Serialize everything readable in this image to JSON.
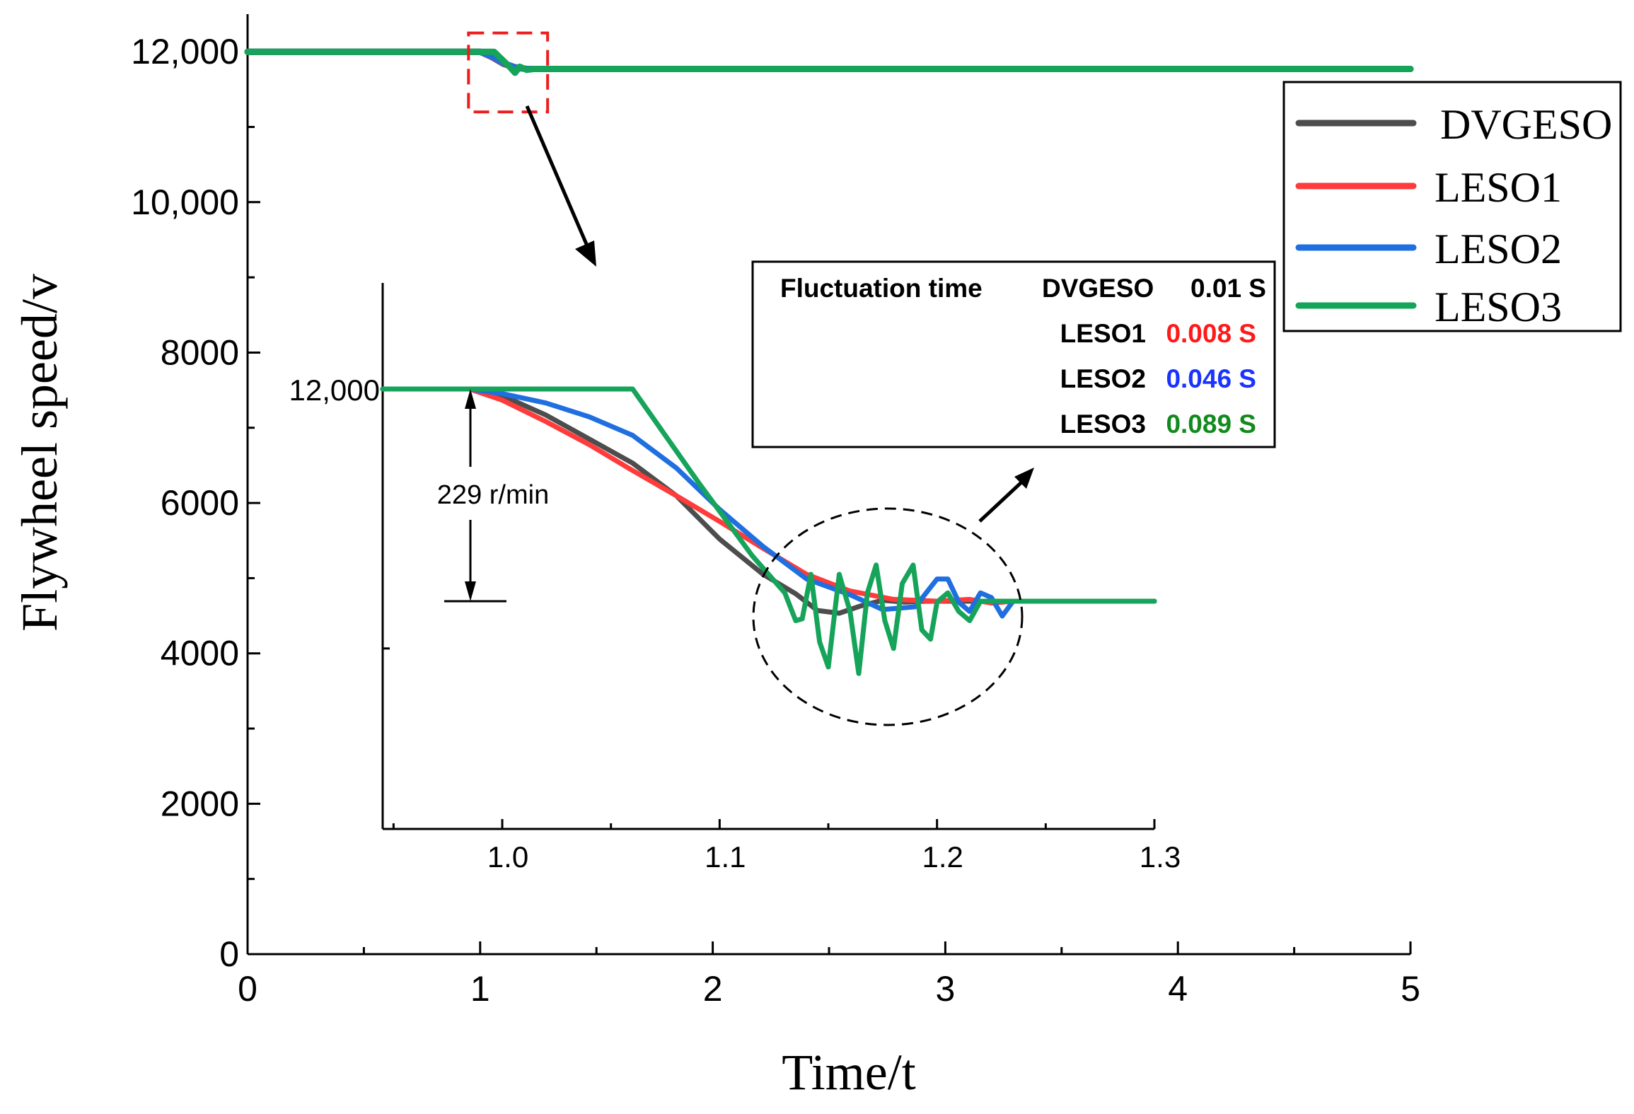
{
  "chart_data": {
    "type": "line",
    "main": {
      "xlabel": "Time/t",
      "ylabel": "Flywheel speed/v",
      "xlim": [
        0,
        5
      ],
      "ylim": [
        0,
        12500
      ],
      "xticks": [
        0,
        1,
        2,
        3,
        4,
        5
      ],
      "xtick_labels": [
        "0",
        "1",
        "2",
        "3",
        "4",
        "5"
      ],
      "yticks": [
        0,
        2000,
        4000,
        6000,
        8000,
        10000,
        12000
      ],
      "ytick_labels": [
        "0",
        "2000",
        "4000",
        "6000",
        "8000",
        "10,000",
        "12,000"
      ],
      "legend": {
        "position": "top-right",
        "entries": [
          {
            "name": "DVGESO",
            "color": "#4d4d4d"
          },
          {
            "name": "LESO1",
            "color": "#ff3b3b"
          },
          {
            "name": "LESO2",
            "color": "#1f6fe0"
          },
          {
            "name": "LESO3",
            "color": "#16a35a"
          }
        ]
      },
      "series": [
        {
          "name": "DVGESO",
          "color": "#4d4d4d",
          "x": [
            0,
            1.0,
            1.05,
            1.1,
            1.15,
            1.2,
            5
          ],
          "y": [
            12000,
            12000,
            11930,
            11840,
            11790,
            11771,
            11771
          ]
        },
        {
          "name": "LESO1",
          "color": "#ff3b3b",
          "x": [
            0,
            1.0,
            1.05,
            1.1,
            1.15,
            1.2,
            5
          ],
          "y": [
            12000,
            12000,
            11935,
            11845,
            11795,
            11771,
            11771
          ]
        },
        {
          "name": "LESO2",
          "color": "#1f6fe0",
          "x": [
            0,
            1.0,
            1.05,
            1.1,
            1.15,
            1.2,
            5
          ],
          "y": [
            12000,
            12000,
            11940,
            11850,
            11790,
            11771,
            11771
          ]
        },
        {
          "name": "LESO3",
          "color": "#16a35a",
          "x": [
            0,
            1.0,
            1.06,
            1.13,
            1.15,
            1.17,
            1.2,
            1.23,
            5
          ],
          "y": [
            12000,
            12000,
            12000,
            11790,
            11720,
            11800,
            11760,
            11771,
            11771
          ]
        }
      ]
    },
    "inset": {
      "xlim": [
        0.945,
        1.3
      ],
      "ylim": [
        11700,
        12020
      ],
      "xticks": [
        1.0,
        1.1,
        1.2,
        1.3
      ],
      "xtick_labels": [
        "1.0",
        "1.1",
        "1.2",
        "1.3"
      ],
      "ytick_label": "12,000",
      "drop_annotation": "229 r/min",
      "drop_value": 229,
      "start_value": 12000,
      "final_value": 11771,
      "info_box": {
        "title": "Fluctuation time",
        "rows": [
          {
            "name": "DVGESO",
            "value": "0.01 S",
            "color": "#000000"
          },
          {
            "name": "LESO1",
            "value": "0.008 S",
            "color": "#ff1a1a"
          },
          {
            "name": "LESO2",
            "value": "0.046 S",
            "color": "#1a33ff"
          },
          {
            "name": "LESO3",
            "value": "0.089 S",
            "color": "#138a1e"
          }
        ]
      },
      "series": [
        {
          "name": "DVGESO",
          "color": "#4d4d4d",
          "points": [
            [
              0.945,
              12000
            ],
            [
              0.985,
              12000
            ],
            [
              1.0,
              11993
            ],
            [
              1.02,
              11972
            ],
            [
              1.04,
              11946
            ],
            [
              1.06,
              11920
            ],
            [
              1.08,
              11885
            ],
            [
              1.1,
              11838
            ],
            [
              1.12,
              11800
            ],
            [
              1.135,
              11779
            ],
            [
              1.145,
              11761
            ],
            [
              1.155,
              11758
            ],
            [
              1.165,
              11766
            ],
            [
              1.175,
              11772
            ],
            [
              1.185,
              11770
            ],
            [
              1.195,
              11771
            ],
            [
              1.3,
              11771
            ]
          ]
        },
        {
          "name": "LESO1",
          "color": "#ff3b3b",
          "points": [
            [
              0.945,
              12000
            ],
            [
              0.985,
              12000
            ],
            [
              1.0,
              11988
            ],
            [
              1.02,
              11965
            ],
            [
              1.04,
              11940
            ],
            [
              1.06,
              11912
            ],
            [
              1.08,
              11885
            ],
            [
              1.1,
              11857
            ],
            [
              1.12,
              11828
            ],
            [
              1.14,
              11800
            ],
            [
              1.16,
              11782
            ],
            [
              1.18,
              11773
            ],
            [
              1.2,
              11771
            ],
            [
              1.215,
              11773
            ],
            [
              1.225,
              11769
            ],
            [
              1.235,
              11771
            ],
            [
              1.3,
              11771
            ]
          ]
        },
        {
          "name": "LESO2",
          "color": "#1f6fe0",
          "points": [
            [
              0.945,
              12000
            ],
            [
              0.985,
              12000
            ],
            [
              1.0,
              11995
            ],
            [
              1.02,
              11985
            ],
            [
              1.04,
              11970
            ],
            [
              1.06,
              11950
            ],
            [
              1.08,
              11915
            ],
            [
              1.1,
              11870
            ],
            [
              1.12,
              11830
            ],
            [
              1.14,
              11795
            ],
            [
              1.16,
              11778
            ],
            [
              1.175,
              11762
            ],
            [
              1.19,
              11765
            ],
            [
              1.2,
              11795
            ],
            [
              1.205,
              11795
            ],
            [
              1.21,
              11770
            ],
            [
              1.215,
              11760
            ],
            [
              1.22,
              11780
            ],
            [
              1.225,
              11775
            ],
            [
              1.23,
              11755
            ],
            [
              1.235,
              11771
            ],
            [
              1.3,
              11771
            ]
          ]
        },
        {
          "name": "LESO3",
          "color": "#16a35a",
          "points": [
            [
              0.945,
              12000
            ],
            [
              1.06,
              12000
            ],
            [
              1.09,
              11900
            ],
            [
              1.115,
              11820
            ],
            [
              1.13,
              11780
            ],
            [
              1.135,
              11750
            ],
            [
              1.138,
              11752
            ],
            [
              1.142,
              11800
            ],
            [
              1.146,
              11727
            ],
            [
              1.15,
              11700
            ],
            [
              1.155,
              11800
            ],
            [
              1.16,
              11760
            ],
            [
              1.164,
              11693
            ],
            [
              1.168,
              11780
            ],
            [
              1.172,
              11810
            ],
            [
              1.176,
              11750
            ],
            [
              1.18,
              11720
            ],
            [
              1.184,
              11790
            ],
            [
              1.189,
              11810
            ],
            [
              1.193,
              11740
            ],
            [
              1.197,
              11730
            ],
            [
              1.2,
              11770
            ],
            [
              1.205,
              11780
            ],
            [
              1.21,
              11760
            ],
            [
              1.215,
              11750
            ],
            [
              1.22,
              11771
            ],
            [
              1.3,
              11771
            ]
          ]
        }
      ]
    }
  }
}
